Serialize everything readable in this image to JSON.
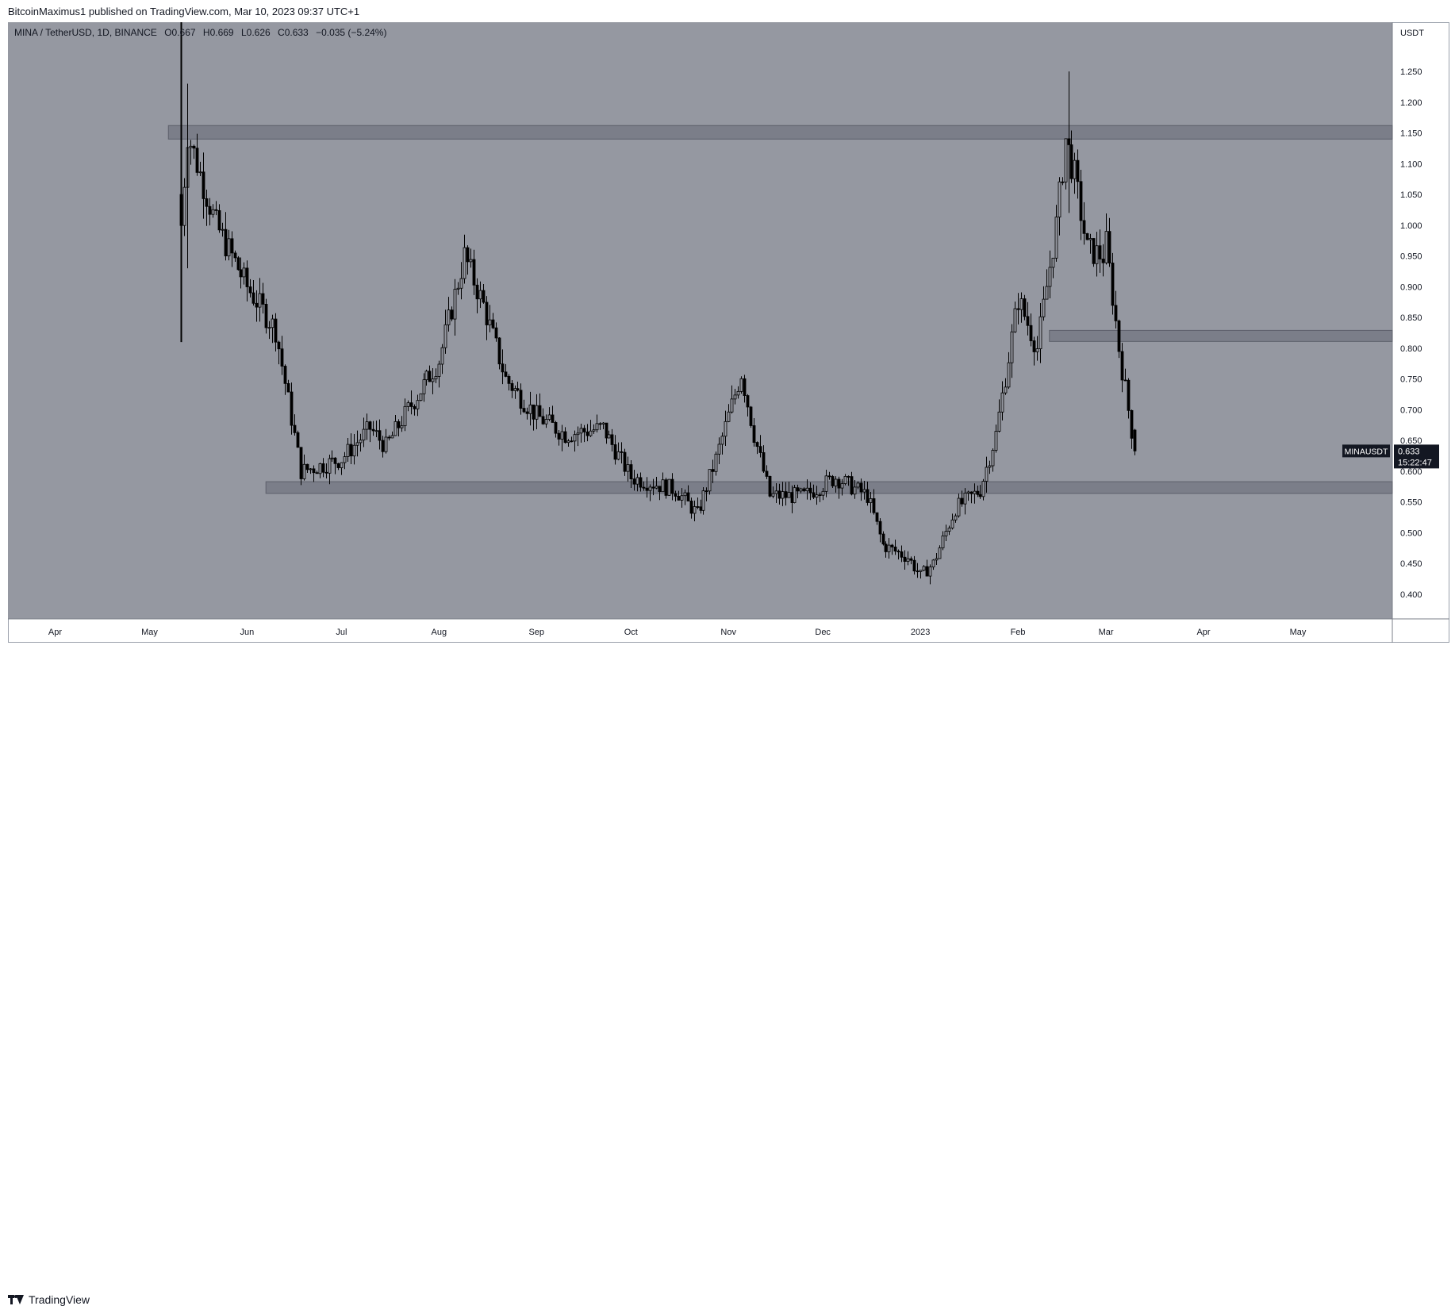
{
  "header": {
    "publisher": "BitcoinMaximus1",
    "published_text": "published on TradingView.com, Mar 10, 2023 09:37 UTC+1"
  },
  "legend": {
    "symbol_line": "MINA / TetherUSD, 1D, BINANCE",
    "o_label": "O",
    "o_value": "0.667",
    "h_label": "H",
    "h_value": "0.669",
    "l_label": "L",
    "l_value": "0.626",
    "c_label": "C",
    "c_value": "0.633",
    "change": "−0.035 (−5.24%)"
  },
  "footer": {
    "brand": "TradingView"
  },
  "colors": {
    "plot_bg": "#9598a1",
    "candle": "#000000",
    "zone_fill": "#787b86",
    "zone_border": "#5d606b",
    "axis_text": "#131722",
    "price_label_bg": "#131722"
  },
  "chart_data": {
    "type": "candlestick",
    "unit_label": "USDT",
    "ylim": [
      0.36,
      1.33
    ],
    "x_start": "2022-03-17",
    "x_end": "2023-05-31",
    "yticks": [
      "1.250",
      "1.200",
      "1.150",
      "1.100",
      "1.050",
      "1.000",
      "0.950",
      "0.900",
      "0.850",
      "0.800",
      "0.750",
      "0.700",
      "0.650",
      "0.600",
      "0.550",
      "0.500",
      "0.450",
      "0.400"
    ],
    "xticks": [
      {
        "date": "2022-04-01",
        "label": "Apr"
      },
      {
        "date": "2022-05-01",
        "label": "May"
      },
      {
        "date": "2022-06-01",
        "label": "Jun"
      },
      {
        "date": "2022-07-01",
        "label": "Jul"
      },
      {
        "date": "2022-08-01",
        "label": "Aug"
      },
      {
        "date": "2022-09-01",
        "label": "Sep"
      },
      {
        "date": "2022-10-01",
        "label": "Oct"
      },
      {
        "date": "2022-11-01",
        "label": "Nov"
      },
      {
        "date": "2022-12-01",
        "label": "Dec"
      },
      {
        "date": "2023-01-01",
        "label": "2023"
      },
      {
        "date": "2023-02-01",
        "label": "Feb"
      },
      {
        "date": "2023-03-01",
        "label": "Mar"
      },
      {
        "date": "2023-04-01",
        "label": "Apr"
      },
      {
        "date": "2023-05-01",
        "label": "May"
      }
    ],
    "zones": [
      {
        "from": "2022-05-07",
        "low": 1.14,
        "high": 1.162
      },
      {
        "from": "2023-02-11",
        "low": 0.811,
        "high": 0.829
      },
      {
        "from": "2022-06-07",
        "low": 0.564,
        "high": 0.583
      }
    ],
    "anchors": [
      {
        "date": "2022-05-11",
        "price": 1.0
      },
      {
        "date": "2022-05-13",
        "price": 1.15
      },
      {
        "date": "2022-05-22",
        "price": 1.0
      },
      {
        "date": "2022-06-01",
        "price": 0.9
      },
      {
        "date": "2022-06-10",
        "price": 0.83
      },
      {
        "date": "2022-06-18",
        "price": 0.6
      },
      {
        "date": "2022-06-25",
        "price": 0.61
      },
      {
        "date": "2022-07-01",
        "price": 0.62
      },
      {
        "date": "2022-07-10",
        "price": 0.67
      },
      {
        "date": "2022-07-15",
        "price": 0.64
      },
      {
        "date": "2022-07-22",
        "price": 0.7
      },
      {
        "date": "2022-08-01",
        "price": 0.78
      },
      {
        "date": "2022-08-09",
        "price": 0.95
      },
      {
        "date": "2022-08-15",
        "price": 0.87
      },
      {
        "date": "2022-08-22",
        "price": 0.75
      },
      {
        "date": "2022-09-01",
        "price": 0.69
      },
      {
        "date": "2022-09-10",
        "price": 0.66
      },
      {
        "date": "2022-09-22",
        "price": 0.67
      },
      {
        "date": "2022-10-01",
        "price": 0.59
      },
      {
        "date": "2022-10-15",
        "price": 0.57
      },
      {
        "date": "2022-10-22",
        "price": 0.53
      },
      {
        "date": "2022-10-28",
        "price": 0.62
      },
      {
        "date": "2022-11-05",
        "price": 0.76
      },
      {
        "date": "2022-11-09",
        "price": 0.66
      },
      {
        "date": "2022-11-14",
        "price": 0.56
      },
      {
        "date": "2022-11-25",
        "price": 0.56
      },
      {
        "date": "2022-12-05",
        "price": 0.59
      },
      {
        "date": "2022-12-15",
        "price": 0.56
      },
      {
        "date": "2022-12-20",
        "price": 0.48
      },
      {
        "date": "2022-12-28",
        "price": 0.46
      },
      {
        "date": "2023-01-01",
        "price": 0.43
      },
      {
        "date": "2023-01-05",
        "price": 0.45
      },
      {
        "date": "2023-01-12",
        "price": 0.54
      },
      {
        "date": "2023-01-20",
        "price": 0.57
      },
      {
        "date": "2023-01-25",
        "price": 0.66
      },
      {
        "date": "2023-02-01",
        "price": 0.88
      },
      {
        "date": "2023-02-07",
        "price": 0.8
      },
      {
        "date": "2023-02-13",
        "price": 1.0
      },
      {
        "date": "2023-02-16",
        "price": 1.14
      },
      {
        "date": "2023-02-19",
        "price": 1.08
      },
      {
        "date": "2023-02-23",
        "price": 0.96
      },
      {
        "date": "2023-02-28",
        "price": 0.95
      },
      {
        "date": "2023-03-01",
        "price": 0.97
      },
      {
        "date": "2023-03-05",
        "price": 0.8
      },
      {
        "date": "2023-03-08",
        "price": 0.7
      },
      {
        "date": "2023-03-10",
        "price": 0.633
      }
    ],
    "series": [
      {
        "name": "MINAUSDT",
        "last_price": "0.633",
        "countdown": "15:22:47"
      }
    ]
  }
}
